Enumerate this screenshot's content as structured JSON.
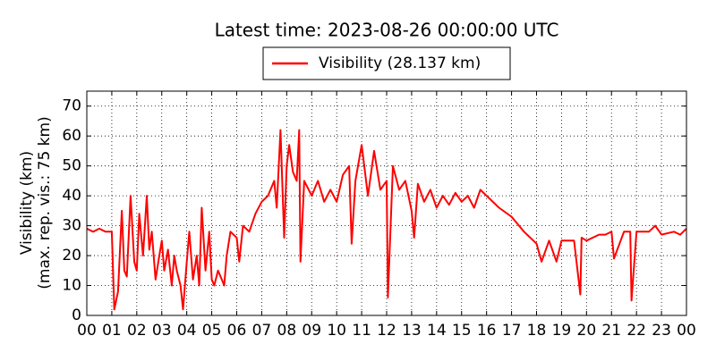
{
  "chart_data": {
    "type": "line",
    "title": "Latest time: 2023-08-26 00:00:00 UTC",
    "ylabel": [
      "Visibility (km)",
      "(max. rep. vis.: 75 km)"
    ],
    "xlim": [
      0,
      24
    ],
    "ylim": [
      0,
      75
    ],
    "yticks": [
      0,
      10,
      20,
      30,
      40,
      50,
      60,
      70
    ],
    "xticks": [
      {
        "value": 0,
        "label": "00"
      },
      {
        "value": 1,
        "label": "01"
      },
      {
        "value": 2,
        "label": "02"
      },
      {
        "value": 3,
        "label": "03"
      },
      {
        "value": 4,
        "label": "04"
      },
      {
        "value": 5,
        "label": "05"
      },
      {
        "value": 6,
        "label": "06"
      },
      {
        "value": 7,
        "label": "07"
      },
      {
        "value": 8,
        "label": "08"
      },
      {
        "value": 9,
        "label": "09"
      },
      {
        "value": 10,
        "label": "10"
      },
      {
        "value": 11,
        "label": "11"
      },
      {
        "value": 12,
        "label": "12"
      },
      {
        "value": 13,
        "label": "13"
      },
      {
        "value": 14,
        "label": "14"
      },
      {
        "value": 15,
        "label": "15"
      },
      {
        "value": 16,
        "label": "16"
      },
      {
        "value": 17,
        "label": "17"
      },
      {
        "value": 18,
        "label": "18"
      },
      {
        "value": 19,
        "label": "19"
      },
      {
        "value": 20,
        "label": "20"
      },
      {
        "value": 21,
        "label": "21"
      },
      {
        "value": 22,
        "label": "22"
      },
      {
        "value": 23,
        "label": "23"
      },
      {
        "value": 24,
        "label": "00"
      }
    ],
    "grid": true,
    "x": [
      0,
      0.25,
      0.5,
      0.75,
      1,
      1.1,
      1.25,
      1.4,
      1.5,
      1.6,
      1.75,
      1.9,
      2,
      2.1,
      2.25,
      2.4,
      2.5,
      2.6,
      2.75,
      2.9,
      3,
      3.1,
      3.25,
      3.4,
      3.5,
      3.6,
      3.75,
      3.85,
      4,
      4.1,
      4.25,
      4.4,
      4.5,
      4.6,
      4.75,
      4.9,
      5,
      5.1,
      5.25,
      5.4,
      5.5,
      5.6,
      5.75,
      6,
      6.1,
      6.25,
      6.5,
      6.75,
      7,
      7.25,
      7.5,
      7.6,
      7.75,
      7.9,
      8,
      8.1,
      8.25,
      8.4,
      8.5,
      8.55,
      8.7,
      9,
      9.25,
      9.5,
      9.75,
      10,
      10.25,
      10.5,
      10.6,
      10.75,
      11,
      11.25,
      11.5,
      11.75,
      12,
      12.05,
      12.25,
      12.5,
      12.75,
      13,
      13.1,
      13.25,
      13.5,
      13.75,
      14,
      14.25,
      14.5,
      14.75,
      15,
      15.25,
      15.5,
      15.75,
      16,
      16.5,
      17,
      17.5,
      17.75,
      18,
      18.2,
      18.5,
      18.8,
      19,
      19.5,
      19.75,
      19.8,
      20,
      20.5,
      20.75,
      21,
      21.1,
      21.5,
      21.75,
      21.8,
      22,
      22.5,
      22.75,
      23,
      23.5,
      23.75,
      24
    ],
    "series": [
      {
        "name": "Visibility (28.137 km)",
        "color": "#ff0000",
        "values": [
          29,
          28,
          29,
          28,
          28,
          2,
          8,
          35,
          15,
          13,
          40,
          18,
          15,
          34,
          20,
          40,
          22,
          28,
          12,
          20,
          25,
          15,
          22,
          10,
          20,
          15,
          10,
          2,
          18,
          28,
          12,
          20,
          10,
          36,
          15,
          28,
          12,
          10,
          15,
          12,
          10,
          20,
          28,
          26,
          18,
          30,
          28,
          34,
          38,
          40,
          45,
          36,
          62,
          26,
          50,
          57,
          48,
          45,
          62,
          18,
          45,
          40,
          45,
          38,
          42,
          38,
          47,
          50,
          24,
          45,
          57,
          40,
          55,
          42,
          45,
          6,
          50,
          42,
          45,
          35,
          26,
          44,
          38,
          42,
          36,
          40,
          37,
          41,
          38,
          40,
          36,
          42,
          40,
          36,
          33,
          28,
          26,
          24,
          18,
          25,
          18,
          25,
          25,
          7,
          26,
          25,
          27,
          27,
          28,
          19,
          28,
          28,
          5,
          28,
          28,
          30,
          27,
          28,
          27,
          29
        ]
      }
    ],
    "legend": "upper center"
  }
}
